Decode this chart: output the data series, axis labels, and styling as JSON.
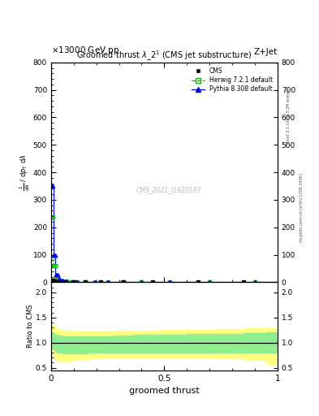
{
  "title": "Groomed thrust $\\lambda\\_2^1$ (CMS jet substructure)",
  "collision_info": "13000 GeV pp",
  "process": "Z+Jet",
  "xlabel": "groomed thrust",
  "watermark": "CMS_2021_I1920187",
  "rivet_label": "Rivet 3.1.10, ≥ 3.2M events",
  "mcplots_label": "mcplots.cern.ch [arXiv:1306.3436]",
  "herwig_x": [
    0.0,
    0.005,
    0.01,
    0.015,
    0.02,
    0.025,
    0.03,
    0.04,
    0.06,
    0.08,
    0.1,
    0.13,
    0.17,
    0.22,
    0.28,
    0.35,
    0.45,
    0.6,
    0.8,
    1.0
  ],
  "herwig_y": [
    238.0,
    238.0,
    60.0,
    60.0,
    18.0,
    18.0,
    8.0,
    5.0,
    3.0,
    2.0,
    1.5,
    1.2,
    1.0,
    0.8,
    0.7,
    0.6,
    0.55,
    0.5,
    0.45,
    0.45
  ],
  "pythia_x": [
    0.0,
    0.005,
    0.01,
    0.015,
    0.02,
    0.025,
    0.03,
    0.04,
    0.06,
    0.08,
    0.1,
    0.13,
    0.17,
    0.22,
    0.28,
    0.35,
    0.45,
    0.6,
    0.8,
    1.0
  ],
  "pythia_y": [
    350.0,
    350.0,
    100.0,
    100.0,
    28.0,
    28.0,
    12.0,
    7.0,
    4.0,
    2.5,
    1.8,
    1.4,
    1.1,
    0.9,
    0.75,
    0.65,
    0.58,
    0.52,
    0.47,
    0.47
  ],
  "cms_data_x": [
    0.003,
    0.008,
    0.013,
    0.02,
    0.035,
    0.06,
    0.1,
    0.15,
    0.22,
    0.32,
    0.45,
    0.65,
    0.85
  ],
  "cms_data_y": [
    1.2,
    8.0,
    4.0,
    2.0,
    1.2,
    0.9,
    0.7,
    0.55,
    0.45,
    0.38,
    0.38,
    0.38,
    0.3
  ],
  "cms_data_yerr": [
    0.2,
    1.0,
    0.5,
    0.25,
    0.15,
    0.12,
    0.09,
    0.08,
    0.07,
    0.06,
    0.06,
    0.06,
    0.05
  ],
  "ratio_x": [
    0.0,
    0.005,
    0.01,
    0.02,
    0.03,
    0.05,
    0.07,
    0.09,
    0.12,
    0.16,
    0.21,
    0.28,
    0.37,
    0.48,
    0.6,
    0.73,
    0.85,
    0.95,
    1.0
  ],
  "ratio_green_up": [
    1.2,
    1.2,
    1.18,
    1.16,
    1.14,
    1.13,
    1.13,
    1.13,
    1.13,
    1.13,
    1.13,
    1.14,
    1.15,
    1.16,
    1.17,
    1.18,
    1.19,
    1.2,
    1.2
  ],
  "ratio_green_down": [
    0.88,
    0.88,
    0.85,
    0.82,
    0.8,
    0.79,
    0.79,
    0.79,
    0.79,
    0.8,
    0.8,
    0.8,
    0.8,
    0.8,
    0.8,
    0.8,
    0.8,
    0.8,
    0.8
  ],
  "ratio_yellow_up": [
    1.35,
    1.35,
    1.32,
    1.28,
    1.26,
    1.24,
    1.23,
    1.22,
    1.22,
    1.22,
    1.22,
    1.23,
    1.24,
    1.25,
    1.26,
    1.27,
    1.28,
    1.29,
    1.3
  ],
  "ratio_yellow_down": [
    0.75,
    0.75,
    0.7,
    0.65,
    0.62,
    0.62,
    0.63,
    0.65,
    0.67,
    0.68,
    0.7,
    0.7,
    0.7,
    0.7,
    0.7,
    0.68,
    0.65,
    0.58,
    0.55
  ],
  "ylim_main": [
    0,
    800
  ],
  "ylim_ratio": [
    0.45,
    2.2
  ],
  "yticks_main": [
    0,
    100,
    200,
    300,
    400,
    500,
    600,
    700,
    800
  ],
  "yticks_ratio": [
    0.5,
    1.0,
    1.5,
    2.0
  ],
  "color_cms": "#000000",
  "color_herwig": "#00bb00",
  "color_pythia": "#0000ff",
  "color_green_band": "#90ee90",
  "color_yellow_band": "#ffff80",
  "bg_color": "#ffffff",
  "ylabel_lines": [
    "mathrm d$^2$N",
    "mathrm d p_T mathrm d lambda"
  ]
}
